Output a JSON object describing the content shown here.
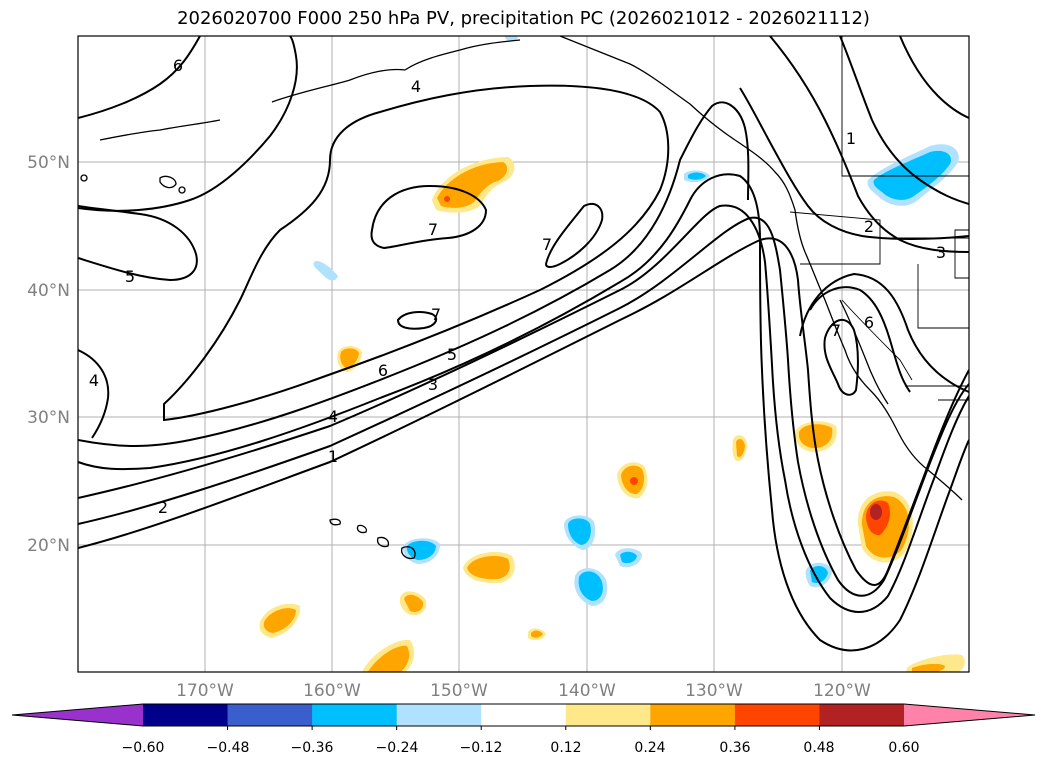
{
  "title": "2026020700 F000 250 hPa PV, precipitation PC (2026021012 - 2026021112)",
  "map": {
    "lat_labels": [
      "50°N",
      "40°N",
      "30°N",
      "20°N"
    ],
    "lon_labels": [
      "170°W",
      "160°W",
      "150°W",
      "140°W",
      "130°W",
      "120°W"
    ],
    "gridlines": true
  },
  "contours": {
    "variable": "250 hPa PV",
    "labels": [
      "6",
      "4",
      "5",
      "7",
      "7",
      "7",
      "6",
      "5",
      "3",
      "4",
      "1",
      "2",
      "1",
      "2",
      "3",
      "6",
      "7",
      "4"
    ]
  },
  "colorbar": {
    "orientation": "horizontal",
    "extend": "both",
    "tick_labels": [
      "−0.60",
      "−0.48",
      "−0.36",
      "−0.24",
      "−0.12",
      "0.12",
      "0.24",
      "0.36",
      "0.48",
      "0.60"
    ],
    "colors": [
      "#9932CC",
      "#00008B",
      "#3A5FCD",
      "#00BFFF",
      "#B0E2FF",
      "#FFFFFF",
      "#FFE88A",
      "#FFA500",
      "#FF4500",
      "#B22222",
      "#FF82AB"
    ]
  }
}
